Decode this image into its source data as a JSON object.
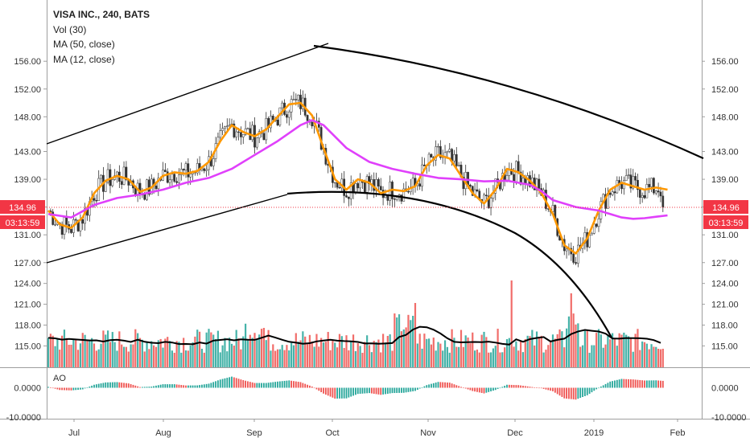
{
  "chart_data": {
    "type": "candlestick",
    "legend": {
      "title": "VISA INC., 240, BATS",
      "lines": [
        "Vol (30)",
        "MA (50, close)",
        "MA (12, close)"
      ]
    },
    "price_axis": {
      "ticks": [
        156.0,
        152.0,
        148.0,
        143.0,
        139.0,
        135.0,
        131.0,
        127.0,
        124.0,
        121.0,
        118.0,
        115.0
      ],
      "tick_labels": [
        "156.00",
        "152.00",
        "148.00",
        "143.00",
        "139.00",
        "",
        "131.00",
        "127.00",
        "124.00",
        "121.00",
        "118.00",
        "115.00"
      ]
    },
    "ao_axis": {
      "ticks": [
        0,
        -10
      ],
      "tick_labels": [
        "0.0000",
        "-10.0000"
      ],
      "label": "AO"
    },
    "x_axis": {
      "labels": [
        "Jul",
        "Aug",
        "Sep",
        "Oct",
        "Nov",
        "Dec",
        "2019",
        "Feb"
      ]
    },
    "last_price": {
      "value": 134.96,
      "label": "134.96",
      "countdown": "03:13:59",
      "color": "#f23645"
    },
    "series": [
      {
        "name": "MA (12, close)",
        "color": "#ff9800",
        "values": [
          [
            0,
            134.5
          ],
          [
            5,
            132.5
          ],
          [
            10,
            132.0
          ],
          [
            15,
            133.5
          ],
          [
            20,
            137.0
          ],
          [
            25,
            138.8
          ],
          [
            30,
            139.5
          ],
          [
            35,
            139.0
          ],
          [
            40,
            137.2
          ],
          [
            45,
            137.8
          ],
          [
            50,
            139.5
          ],
          [
            55,
            140.0
          ],
          [
            60,
            139.8
          ],
          [
            65,
            140.2
          ],
          [
            70,
            141.5
          ],
          [
            75,
            144.5
          ],
          [
            80,
            146.8
          ],
          [
            85,
            145.8
          ],
          [
            90,
            145.2
          ],
          [
            95,
            146.2
          ],
          [
            100,
            148.0
          ],
          [
            105,
            149.8
          ],
          [
            110,
            150.0
          ],
          [
            115,
            148.2
          ],
          [
            120,
            143.5
          ],
          [
            125,
            139.0
          ],
          [
            130,
            137.5
          ],
          [
            135,
            139.0
          ],
          [
            140,
            138.5
          ],
          [
            145,
            137.0
          ],
          [
            150,
            137.5
          ],
          [
            155,
            137.3
          ],
          [
            160,
            138.0
          ],
          [
            165,
            141.0
          ],
          [
            170,
            142.5
          ],
          [
            175,
            142.0
          ],
          [
            180,
            139.5
          ],
          [
            185,
            137.0
          ],
          [
            190,
            135.5
          ],
          [
            195,
            137.5
          ],
          [
            200,
            140.5
          ],
          [
            205,
            140.0
          ],
          [
            210,
            138.8
          ],
          [
            215,
            137.0
          ],
          [
            220,
            134.0
          ],
          [
            225,
            129.5
          ],
          [
            230,
            128.3
          ],
          [
            235,
            130.5
          ],
          [
            240,
            134.5
          ],
          [
            245,
            137.5
          ],
          [
            250,
            138.5
          ],
          [
            255,
            138.0
          ],
          [
            260,
            137.5
          ],
          [
            265,
            137.8
          ],
          [
            270,
            137.5
          ]
        ]
      },
      {
        "name": "MA (50, close)",
        "color": "#e040fb",
        "values": [
          [
            0,
            134.0
          ],
          [
            10,
            133.5
          ],
          [
            20,
            135.3
          ],
          [
            30,
            136.3
          ],
          [
            40,
            136.8
          ],
          [
            50,
            137.5
          ],
          [
            60,
            138.5
          ],
          [
            70,
            139.2
          ],
          [
            80,
            140.5
          ],
          [
            90,
            142.5
          ],
          [
            100,
            144.5
          ],
          [
            110,
            146.8
          ],
          [
            115,
            147.5
          ],
          [
            120,
            146.8
          ],
          [
            130,
            143.5
          ],
          [
            140,
            141.5
          ],
          [
            150,
            140.5
          ],
          [
            160,
            139.8
          ],
          [
            170,
            139.2
          ],
          [
            180,
            139.0
          ],
          [
            190,
            138.7
          ],
          [
            200,
            138.8
          ],
          [
            210,
            138.2
          ],
          [
            215,
            137.3
          ],
          [
            220,
            136.0
          ],
          [
            230,
            135.0
          ],
          [
            240,
            134.5
          ],
          [
            250,
            133.5
          ],
          [
            255,
            133.3
          ],
          [
            260,
            133.4
          ],
          [
            265,
            133.6
          ],
          [
            270,
            133.8
          ]
        ]
      }
    ],
    "volume": {
      "name": "Vol (30)",
      "up_color": "#26a69a",
      "down_color": "#ef5350"
    }
  }
}
